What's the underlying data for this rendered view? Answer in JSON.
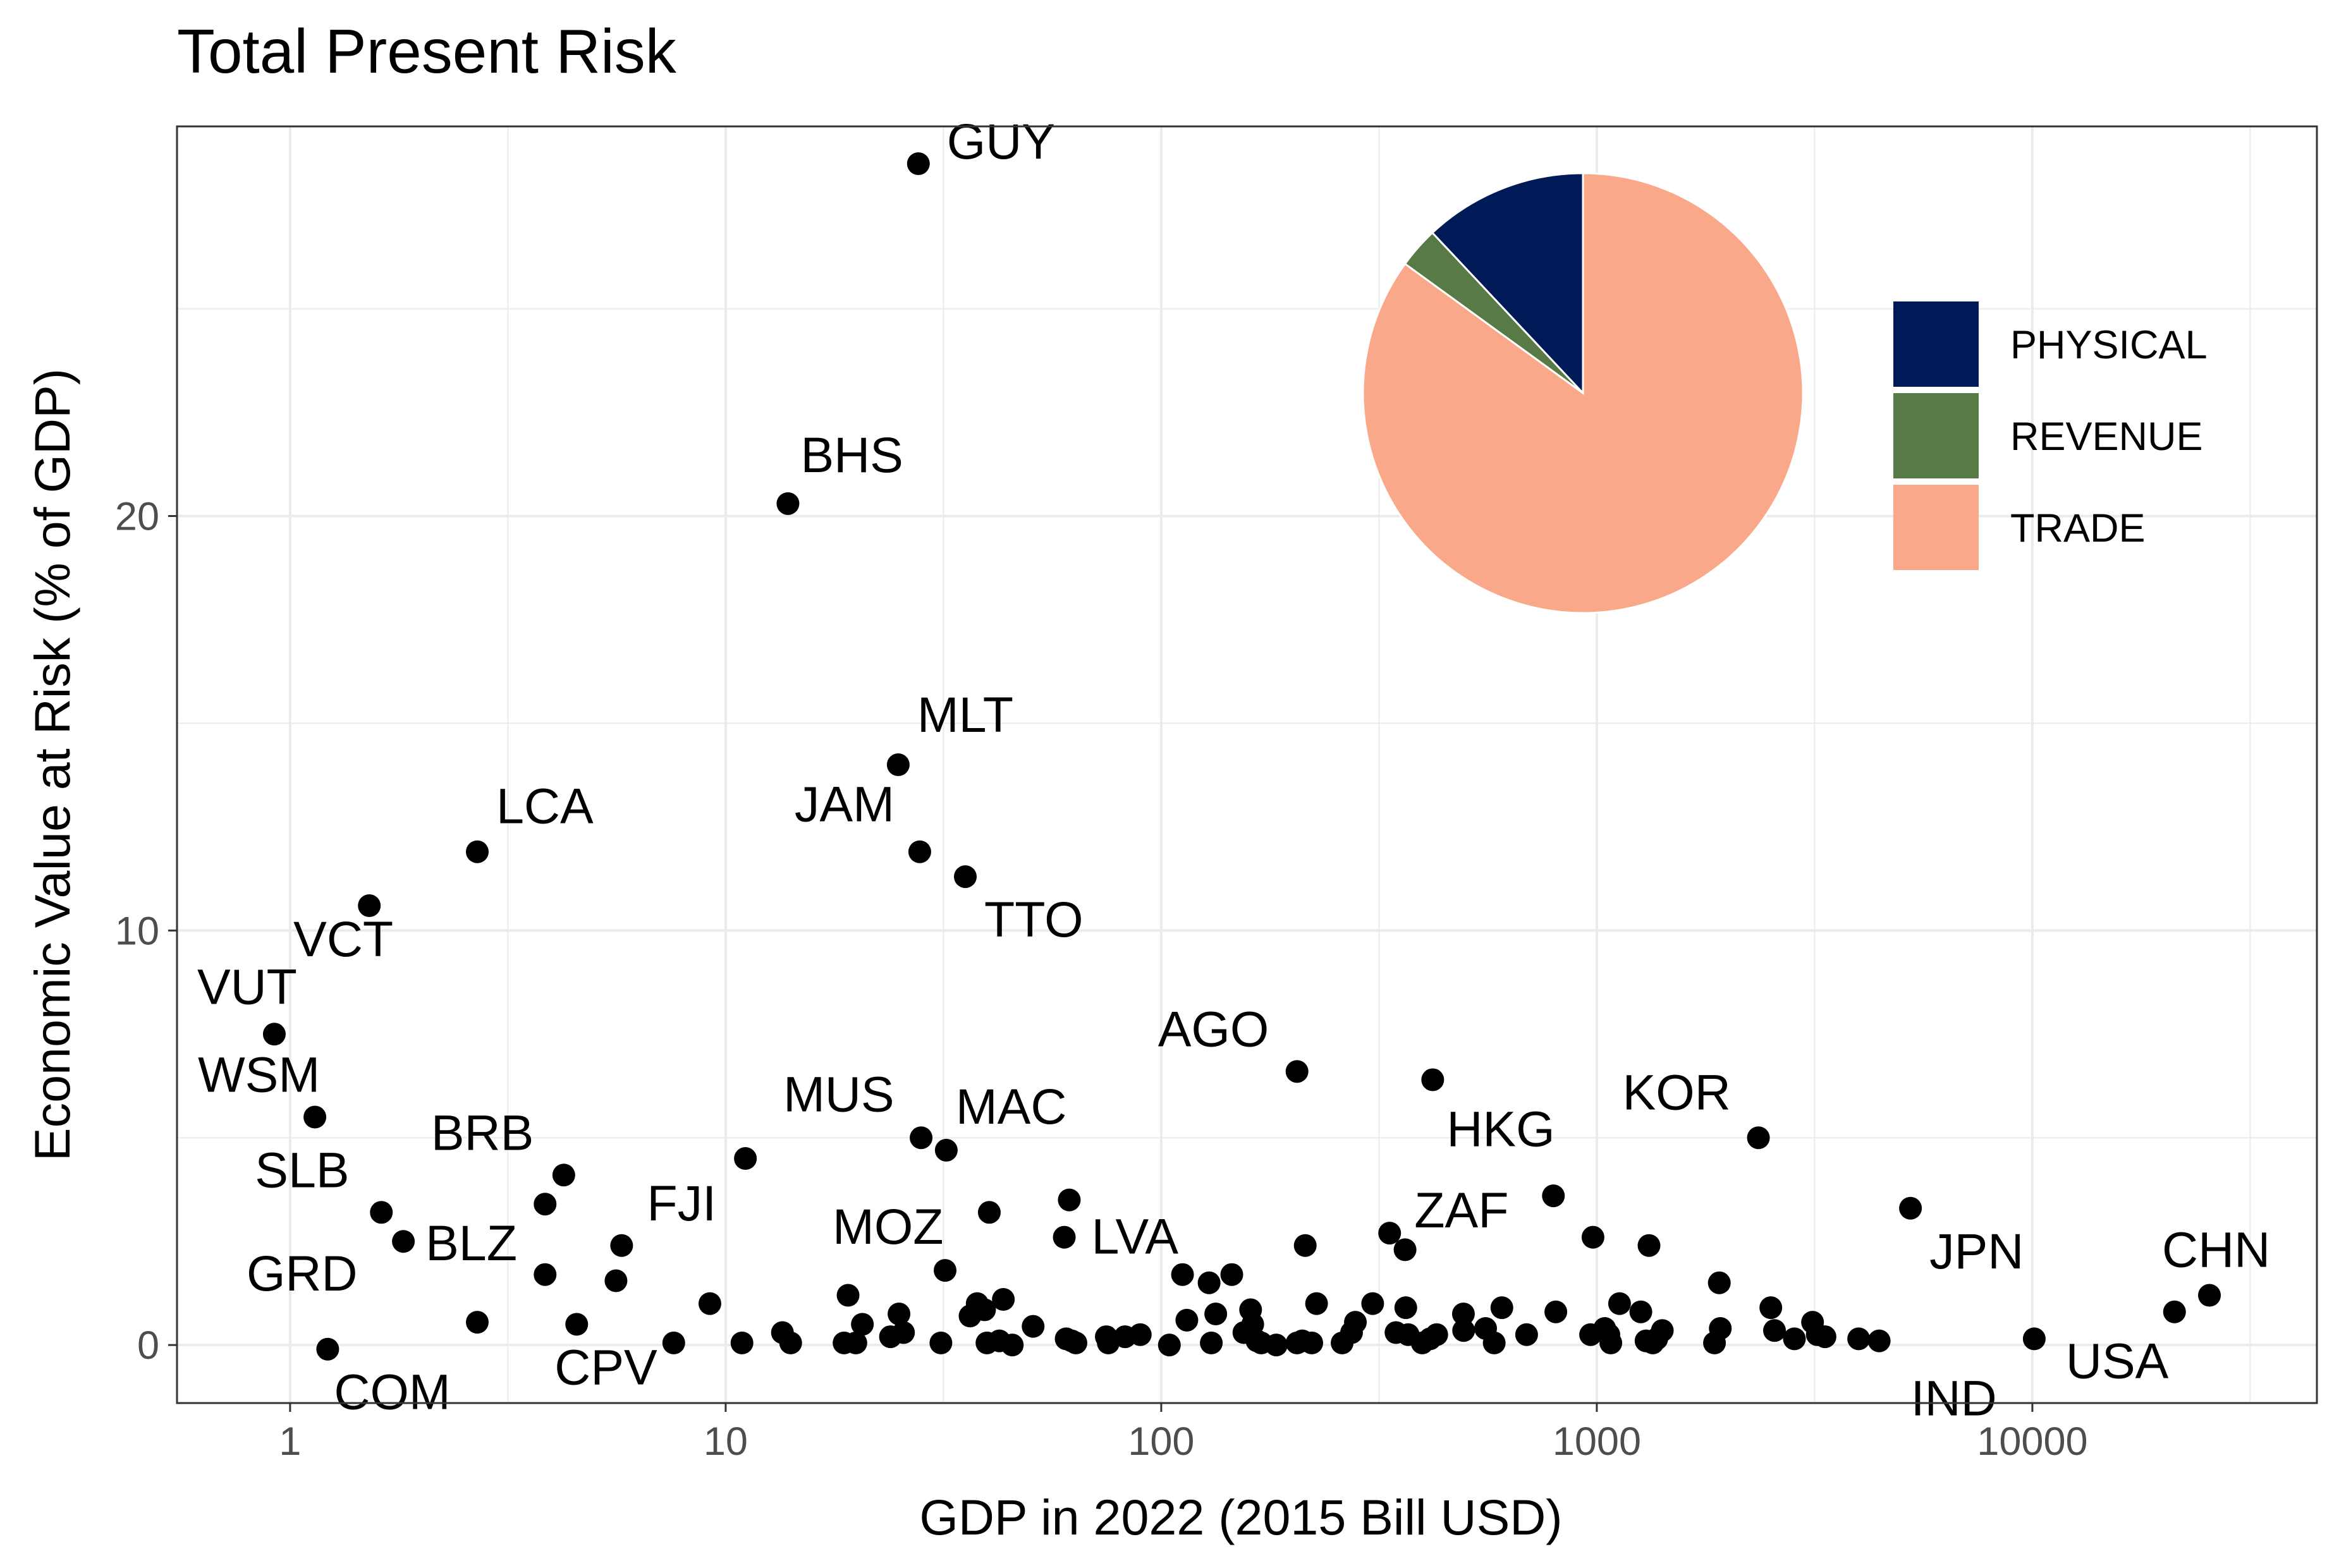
{
  "chart_data": {
    "type": "scatter",
    "title": "Total Present Risk",
    "xlabel": "GDP in 2022 (2015 Bill USD)",
    "ylabel": "Economic Value at Risk (% of GDP)",
    "x_scale": "log10",
    "xlim": [
      0.55,
      45000
    ],
    "ylim": [
      -1.4,
      29.4
    ],
    "x_ticks": [
      1,
      10,
      100,
      1000,
      10000
    ],
    "x_tick_labels": [
      "1",
      "10",
      "100",
      "1000",
      "10000"
    ],
    "y_ticks": [
      0,
      10,
      20
    ],
    "y_tick_labels": [
      "0",
      "10",
      "20"
    ],
    "grid": true,
    "labeled_points": [
      {
        "label": "GUY",
        "x": 27.7,
        "y": 28.5
      },
      {
        "label": "BHS",
        "x": 13.9,
        "y": 20.3
      },
      {
        "label": "MLT",
        "x": 24.9,
        "y": 14.0
      },
      {
        "label": "JAM",
        "x": 27.9,
        "y": 11.9
      },
      {
        "label": "TTO",
        "x": 35.5,
        "y": 11.3
      },
      {
        "label": "LCA",
        "x": 2.69,
        "y": 11.9
      },
      {
        "label": "VCT",
        "x": 1.52,
        "y": 10.6
      },
      {
        "label": "VUT",
        "x": 0.92,
        "y": 7.5
      },
      {
        "label": "WSM",
        "x": 1.14,
        "y": 5.5
      },
      {
        "label": "SLB",
        "x": 1.62,
        "y": 3.2
      },
      {
        "label": "BLZ",
        "x": 1.82,
        "y": 2.5
      },
      {
        "label": "BRB",
        "x": 4.25,
        "y": 4.1
      },
      {
        "label": "GRD",
        "x": 2.69,
        "y": 0.55
      },
      {
        "label": "COM",
        "x": 1.22,
        "y": -0.1
      },
      {
        "label": "FJI",
        "x": 5.77,
        "y": 2.4
      },
      {
        "label": "CPV",
        "x": 4.55,
        "y": 0.5
      },
      {
        "label": "MUS",
        "x": 28.1,
        "y": 5.0
      },
      {
        "label": "MAC",
        "x": 32.1,
        "y": 4.7
      },
      {
        "label": "MOZ",
        "x": 31.9,
        "y": 1.8
      },
      {
        "label": "LVA",
        "x": 61.5,
        "y": 3.5
      },
      {
        "label": "AGO",
        "x": 205.0,
        "y": 6.6
      },
      {
        "label": "HKG",
        "x": 420.0,
        "y": 6.4
      },
      {
        "label": "ZAF",
        "x": 795.0,
        "y": 3.6
      },
      {
        "label": "KOR",
        "x": 2350.0,
        "y": 5.0
      },
      {
        "label": "JPN",
        "x": 5250.0,
        "y": 3.3
      },
      {
        "label": "IND",
        "x": 4450.0,
        "y": 0.1
      },
      {
        "label": "USA",
        "x": 10100.0,
        "y": 0.15
      },
      {
        "label": "CHN",
        "x": 25500.0,
        "y": 1.2
      }
    ],
    "points": [
      {
        "x": 3.85,
        "y": 3.4
      },
      {
        "x": 3.85,
        "y": 1.7
      },
      {
        "x": 5.6,
        "y": 1.55
      },
      {
        "x": 7.6,
        "y": 0.05
      },
      {
        "x": 9.2,
        "y": 1.0
      },
      {
        "x": 10.9,
        "y": 0.05
      },
      {
        "x": 11.1,
        "y": 4.5
      },
      {
        "x": 13.5,
        "y": 0.3
      },
      {
        "x": 14.1,
        "y": 0.05
      },
      {
        "x": 18.7,
        "y": 0.05
      },
      {
        "x": 19.1,
        "y": 1.2
      },
      {
        "x": 19.9,
        "y": 0.05
      },
      {
        "x": 20.6,
        "y": 0.5
      },
      {
        "x": 23.9,
        "y": 0.2
      },
      {
        "x": 25.0,
        "y": 0.75
      },
      {
        "x": 25.6,
        "y": 0.3
      },
      {
        "x": 31.2,
        "y": 0.05
      },
      {
        "x": 36.4,
        "y": 0.7
      },
      {
        "x": 37.8,
        "y": 1.0
      },
      {
        "x": 39.3,
        "y": 0.85
      },
      {
        "x": 39.8,
        "y": 0.05
      },
      {
        "x": 40.3,
        "y": 3.2
      },
      {
        "x": 42.5,
        "y": 0.1
      },
      {
        "x": 43.4,
        "y": 1.1
      },
      {
        "x": 45.5,
        "y": 0.0
      },
      {
        "x": 50.8,
        "y": 0.45
      },
      {
        "x": 59.9,
        "y": 2.6
      },
      {
        "x": 60.5,
        "y": 0.15
      },
      {
        "x": 62.3,
        "y": 0.1
      },
      {
        "x": 63.7,
        "y": 0.05
      },
      {
        "x": 74.8,
        "y": 0.2
      },
      {
        "x": 75.6,
        "y": 0.05
      },
      {
        "x": 82.6,
        "y": 0.2
      },
      {
        "x": 89.5,
        "y": 0.25
      },
      {
        "x": 104.4,
        "y": 0.0
      },
      {
        "x": 111.9,
        "y": 1.7
      },
      {
        "x": 114.5,
        "y": 0.6
      },
      {
        "x": 128.8,
        "y": 1.5
      },
      {
        "x": 130.3,
        "y": 0.05
      },
      {
        "x": 133.4,
        "y": 0.75
      },
      {
        "x": 145.2,
        "y": 1.7
      },
      {
        "x": 154.8,
        "y": 0.3
      },
      {
        "x": 160.4,
        "y": 0.85
      },
      {
        "x": 162.2,
        "y": 0.5
      },
      {
        "x": 165.9,
        "y": 0.1
      },
      {
        "x": 169.7,
        "y": 0.05
      },
      {
        "x": 183.7,
        "y": 0.0
      },
      {
        "x": 205.0,
        "y": 0.05
      },
      {
        "x": 210.8,
        "y": 0.1
      },
      {
        "x": 214.1,
        "y": 2.4
      },
      {
        "x": 221.6,
        "y": 0.05
      },
      {
        "x": 227.3,
        "y": 1.0
      },
      {
        "x": 260.2,
        "y": 0.05
      },
      {
        "x": 273.5,
        "y": 0.3
      },
      {
        "x": 279.1,
        "y": 0.55
      },
      {
        "x": 305.8,
        "y": 1.0
      },
      {
        "x": 334.5,
        "y": 2.7
      },
      {
        "x": 345.9,
        "y": 0.3
      },
      {
        "x": 362.9,
        "y": 2.3
      },
      {
        "x": 364.3,
        "y": 0.9
      },
      {
        "x": 368.9,
        "y": 0.25
      },
      {
        "x": 397.4,
        "y": 0.05
      },
      {
        "x": 414.2,
        "y": 0.15
      },
      {
        "x": 429.0,
        "y": 0.25
      },
      {
        "x": 494.1,
        "y": 0.75
      },
      {
        "x": 494.6,
        "y": 0.35
      },
      {
        "x": 555.5,
        "y": 0.4
      },
      {
        "x": 581.4,
        "y": 0.05
      },
      {
        "x": 605.4,
        "y": 0.9
      },
      {
        "x": 690.0,
        "y": 0.25
      },
      {
        "x": 805.2,
        "y": 0.8
      },
      {
        "x": 967.7,
        "y": 0.25
      },
      {
        "x": 980.1,
        "y": 2.6
      },
      {
        "x": 1042.6,
        "y": 0.4
      },
      {
        "x": 1065.8,
        "y": 0.25
      },
      {
        "x": 1076.9,
        "y": 0.05
      },
      {
        "x": 1127.8,
        "y": 1.0
      },
      {
        "x": 1262.1,
        "y": 0.8
      },
      {
        "x": 1297.3,
        "y": 0.1
      },
      {
        "x": 1317.9,
        "y": 2.4
      },
      {
        "x": 1344.3,
        "y": 0.05
      },
      {
        "x": 1373.0,
        "y": 0.15
      },
      {
        "x": 1413.7,
        "y": 0.35
      },
      {
        "x": 1862.9,
        "y": 0.05
      },
      {
        "x": 1911.0,
        "y": 1.5
      },
      {
        "x": 1921.0,
        "y": 0.4
      },
      {
        "x": 2509.1,
        "y": 0.9
      },
      {
        "x": 2558.5,
        "y": 0.35
      },
      {
        "x": 2842.2,
        "y": 0.15
      },
      {
        "x": 3128.5,
        "y": 0.55
      },
      {
        "x": 3207.8,
        "y": 0.25
      },
      {
        "x": 3340.8,
        "y": 0.2
      },
      {
        "x": 3992.5,
        "y": 0.15
      },
      {
        "x": 21200.0,
        "y": 0.8
      }
    ],
    "pie": {
      "slices": [
        {
          "name": "PHYSICAL",
          "value": 0.12,
          "color": "#001a57"
        },
        {
          "name": "REVENUE",
          "value": 0.03,
          "color": "#587a47"
        },
        {
          "name": "TRADE",
          "value": 0.85,
          "color": "#f9a88a"
        }
      ]
    },
    "legend": {
      "position": "right",
      "entries": [
        {
          "label": "PHYSICAL",
          "color": "#001a57"
        },
        {
          "label": "REVENUE",
          "color": "#587a47"
        },
        {
          "label": "TRADE",
          "color": "#f9a88a"
        }
      ]
    }
  }
}
